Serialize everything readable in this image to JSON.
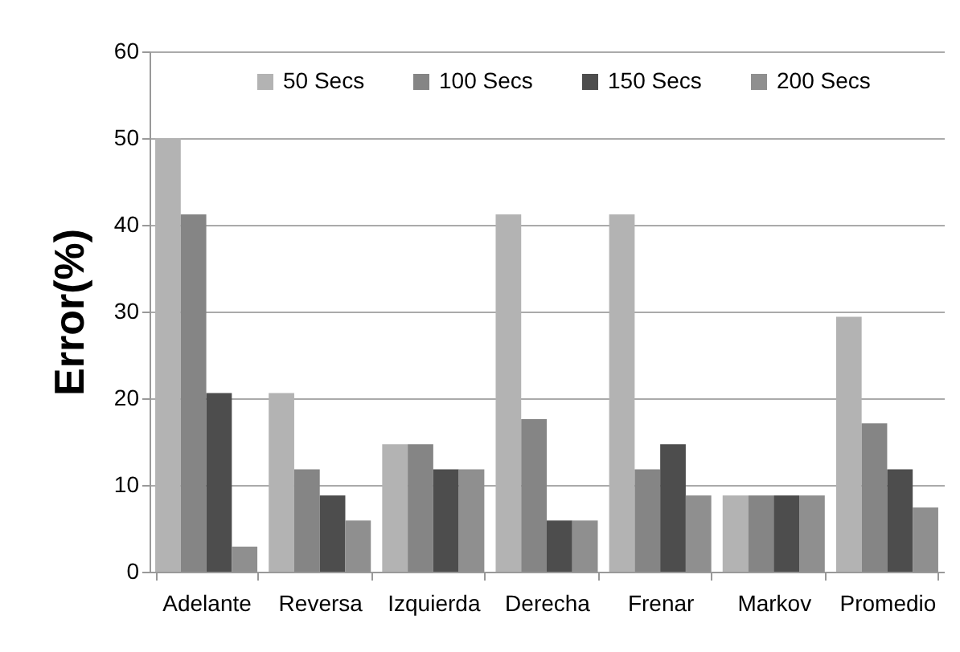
{
  "chart_data": {
    "type": "bar",
    "ylabel": "Error(%)",
    "categories": [
      "Adelante",
      "Reversa",
      "Izquierda",
      "Derecha",
      "Frenar",
      "Markov",
      "Promedio"
    ],
    "series": [
      {
        "name": "50 Secs",
        "color": "#b3b3b3",
        "values": [
          50,
          20.6,
          14.7,
          41.2,
          41.2,
          8.8,
          29.4
        ]
      },
      {
        "name": "100 Secs",
        "color": "#858585",
        "values": [
          41.2,
          11.8,
          14.7,
          17.6,
          11.8,
          8.8,
          17.1
        ]
      },
      {
        "name": "150 Secs",
        "color": "#4d4d4d",
        "values": [
          20.6,
          8.8,
          11.8,
          5.9,
          14.7,
          8.8,
          11.8
        ]
      },
      {
        "name": "200 Secs",
        "color": "#8f8f8f",
        "values": [
          2.9,
          5.9,
          11.8,
          5.9,
          8.8,
          8.8,
          7.4
        ]
      }
    ],
    "ylim": [
      0,
      60
    ],
    "yticks": [
      0,
      10,
      20,
      30,
      40,
      50,
      60
    ],
    "grid": "y",
    "legend": "top"
  }
}
